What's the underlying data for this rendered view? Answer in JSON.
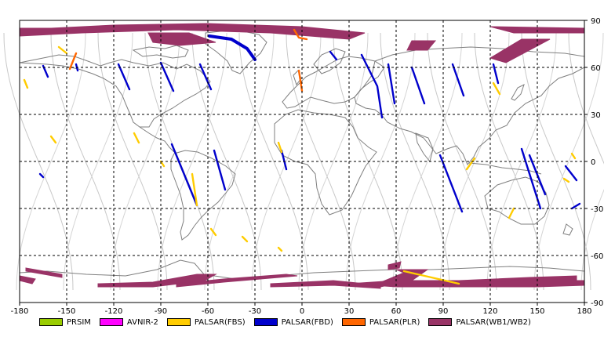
{
  "chart_data": {
    "type": "map",
    "title": "",
    "x_ticks": [
      "-180",
      "-150",
      "-120",
      "-90",
      "-60",
      "-30",
      "0",
      "30",
      "60",
      "90",
      "120",
      "150",
      "180"
    ],
    "y_ticks": [
      "90",
      "60",
      "30",
      "0",
      "-30",
      "-60",
      "-90"
    ],
    "xlim": [
      -180,
      180
    ],
    "ylim": [
      -90,
      90
    ],
    "grid": true,
    "legend_position": "bottom",
    "legend": [
      {
        "label": "PRSIM",
        "color": "#99cc00"
      },
      {
        "label": "AVNIR-2",
        "color": "#ff00ff"
      },
      {
        "label": "PALSAR(FBS)",
        "color": "#ffcc00"
      },
      {
        "label": "PALSAR(FBD)",
        "color": "#0000cc"
      },
      {
        "label": "PALSAR(PLR)",
        "color": "#ff6600"
      },
      {
        "label": "PALSAR(WB1/WB2)",
        "color": "#993366"
      }
    ],
    "swaths": [
      {
        "sensor": "PALSAR(WB1/WB2)",
        "points": [
          [
            -180,
            84
          ],
          [
            -120,
            87
          ],
          [
            -60,
            88
          ],
          [
            0,
            86
          ],
          [
            40,
            82
          ],
          [
            30,
            78
          ],
          [
            -20,
            82
          ],
          [
            -80,
            84
          ],
          [
            -140,
            82
          ],
          [
            -180,
            80
          ]
        ],
        "closed": true
      },
      {
        "sensor": "PALSAR(WB1/WB2)",
        "points": [
          [
            -180,
            85
          ],
          [
            -160,
            85
          ],
          [
            -150,
            83
          ],
          [
            -180,
            83
          ]
        ],
        "closed": true
      },
      {
        "sensor": "PALSAR(WB1/WB2)",
        "points": [
          [
            -98,
            82
          ],
          [
            -72,
            82
          ],
          [
            -55,
            76
          ],
          [
            -78,
            74
          ],
          [
            -95,
            76
          ]
        ],
        "closed": true
      },
      {
        "sensor": "PALSAR(WB1/WB2)",
        "points": [
          [
            70,
            77
          ],
          [
            85,
            77
          ],
          [
            80,
            71
          ],
          [
            67,
            71
          ]
        ],
        "closed": true
      },
      {
        "sensor": "PALSAR(WB1/WB2)",
        "points": [
          [
            120,
            86
          ],
          [
            180,
            85
          ],
          [
            180,
            82
          ],
          [
            135,
            82
          ]
        ],
        "closed": true
      },
      {
        "sensor": "PALSAR(WB1/WB2)",
        "points": [
          [
            140,
            78
          ],
          [
            158,
            78
          ],
          [
            130,
            63
          ],
          [
            120,
            66
          ]
        ],
        "closed": true
      },
      {
        "sensor": "PALSAR(WB1/WB2)",
        "points": [
          [
            -176,
            -68
          ],
          [
            -153,
            -72
          ],
          [
            -153,
            -74
          ],
          [
            -176,
            -70
          ]
        ],
        "closed": true
      },
      {
        "sensor": "PALSAR(WB1/WB2)",
        "points": [
          [
            -180,
            -73
          ],
          [
            -170,
            -75
          ],
          [
            -172,
            -78
          ],
          [
            -180,
            -76
          ]
        ],
        "closed": true
      },
      {
        "sensor": "PALSAR(WB1/WB2)",
        "points": [
          [
            -55,
            -72
          ],
          [
            -67,
            -72
          ],
          [
            -95,
            -77
          ],
          [
            -130,
            -78
          ],
          [
            -130,
            -80
          ],
          [
            -95,
            -80
          ],
          [
            -62,
            -76
          ]
        ],
        "closed": true
      },
      {
        "sensor": "PALSAR(WB1/WB2)",
        "points": [
          [
            -3,
            -73
          ],
          [
            -50,
            -77
          ],
          [
            -80,
            -80
          ],
          [
            -80,
            -78
          ],
          [
            -50,
            -75
          ],
          [
            -10,
            -72
          ]
        ],
        "closed": true
      },
      {
        "sensor": "PALSAR(WB1/WB2)",
        "points": [
          [
            -20,
            -78
          ],
          [
            20,
            -76
          ],
          [
            50,
            -79
          ],
          [
            50,
            -81
          ],
          [
            20,
            -79
          ],
          [
            -20,
            -80
          ]
        ],
        "closed": true
      },
      {
        "sensor": "PALSAR(WB1/WB2)",
        "points": [
          [
            55,
            -66
          ],
          [
            63,
            -64
          ],
          [
            62,
            -68
          ],
          [
            55,
            -69
          ]
        ],
        "closed": true
      },
      {
        "sensor": "PALSAR(WB1/WB2)",
        "points": [
          [
            60,
            -69
          ],
          [
            80,
            -69
          ],
          [
            70,
            -76
          ],
          [
            50,
            -80
          ],
          [
            48,
            -78
          ],
          [
            65,
            -71
          ]
        ],
        "closed": true
      },
      {
        "sensor": "PALSAR(WB1/WB2)",
        "points": [
          [
            30,
            -78
          ],
          [
            60,
            -76
          ],
          [
            100,
            -76
          ],
          [
            145,
            -74
          ],
          [
            175,
            -73
          ],
          [
            175,
            -76
          ],
          [
            140,
            -78
          ],
          [
            100,
            -80
          ],
          [
            60,
            -80
          ]
        ],
        "closed": true
      },
      {
        "sensor": "PALSAR(WB1/WB2)",
        "points": [
          [
            80,
            -77
          ],
          [
            150,
            -76
          ],
          [
            180,
            -76
          ],
          [
            180,
            -79
          ],
          [
            150,
            -80
          ],
          [
            80,
            -80
          ]
        ],
        "closed": true
      },
      {
        "sensor": "PALSAR(FBD)",
        "points": [
          [
            -59,
            80
          ],
          [
            -45,
            78
          ],
          [
            -35,
            72
          ],
          [
            -30,
            65
          ]
        ],
        "closed": false
      },
      {
        "sensor": "PALSAR(FBD)",
        "points": [
          [
            -165,
            61
          ],
          [
            -162,
            54
          ]
        ],
        "closed": false
      },
      {
        "sensor": "PALSAR(FBD)",
        "points": [
          [
            -144,
            62
          ],
          [
            -143,
            58
          ]
        ],
        "closed": false
      },
      {
        "sensor": "PALSAR(FBD)",
        "points": [
          [
            -117,
            62
          ],
          [
            -110,
            46
          ]
        ],
        "closed": false
      },
      {
        "sensor": "PALSAR(FBD)",
        "points": [
          [
            -90,
            63
          ],
          [
            -82,
            45
          ]
        ],
        "closed": false
      },
      {
        "sensor": "PALSAR(FBD)",
        "points": [
          [
            -65,
            62
          ],
          [
            -58,
            46
          ]
        ],
        "closed": false
      },
      {
        "sensor": "PALSAR(FBD)",
        "points": [
          [
            18,
            70
          ],
          [
            22,
            65
          ]
        ],
        "closed": false
      },
      {
        "sensor": "PALSAR(FBD)",
        "points": [
          [
            38,
            68
          ],
          [
            48,
            48
          ],
          [
            51,
            28
          ]
        ],
        "closed": false
      },
      {
        "sensor": "PALSAR(FBD)",
        "points": [
          [
            55,
            62
          ],
          [
            59,
            37
          ]
        ],
        "closed": false
      },
      {
        "sensor": "PALSAR(FBD)",
        "points": [
          [
            70,
            60
          ],
          [
            78,
            37
          ]
        ],
        "closed": false
      },
      {
        "sensor": "PALSAR(FBD)",
        "points": [
          [
            96,
            62
          ],
          [
            103,
            42
          ]
        ],
        "closed": false
      },
      {
        "sensor": "PALSAR(FBD)",
        "points": [
          [
            122,
            62
          ],
          [
            125,
            50
          ]
        ],
        "closed": false
      },
      {
        "sensor": "PALSAR(FBD)",
        "points": [
          [
            -83,
            11
          ],
          [
            -67,
            -28
          ]
        ],
        "closed": false
      },
      {
        "sensor": "PALSAR(FBD)",
        "points": [
          [
            -56,
            7
          ],
          [
            -49,
            -18
          ]
        ],
        "closed": false
      },
      {
        "sensor": "PALSAR(FBD)",
        "points": [
          [
            88,
            4
          ],
          [
            102,
            -32
          ]
        ],
        "closed": false
      },
      {
        "sensor": "PALSAR(FBD)",
        "points": [
          [
            140,
            8
          ],
          [
            152,
            -30
          ]
        ],
        "closed": false
      },
      {
        "sensor": "PALSAR(FBD)",
        "points": [
          [
            -167,
            -8
          ],
          [
            -165,
            -10
          ]
        ],
        "closed": false
      },
      {
        "sensor": "PALSAR(FBD)",
        "points": [
          [
            -13,
            7
          ],
          [
            -10,
            -5
          ]
        ],
        "closed": false
      },
      {
        "sensor": "PALSAR(FBD)",
        "points": [
          [
            145,
            4
          ],
          [
            155,
            -21
          ]
        ],
        "closed": false
      },
      {
        "sensor": "PALSAR(FBD)",
        "points": [
          [
            168,
            -3
          ],
          [
            175,
            -12
          ]
        ],
        "closed": false
      },
      {
        "sensor": "PALSAR(FBD)",
        "points": [
          [
            177,
            -27
          ],
          [
            172,
            -30
          ]
        ],
        "closed": false
      },
      {
        "sensor": "PALSAR(PLR)",
        "points": [
          [
            -144,
            69
          ],
          [
            -148,
            59
          ]
        ],
        "closed": false
      },
      {
        "sensor": "PALSAR(PLR)",
        "points": [
          [
            -5,
            84
          ],
          [
            -2,
            79
          ],
          [
            3,
            78
          ]
        ],
        "closed": false
      },
      {
        "sensor": "PALSAR(PLR)",
        "points": [
          [
            -2,
            58
          ],
          [
            0,
            45
          ]
        ],
        "closed": false
      },
      {
        "sensor": "PALSAR(FBS)",
        "points": [
          [
            -155,
            73
          ],
          [
            -150,
            69
          ]
        ],
        "closed": false
      },
      {
        "sensor": "PALSAR(FBS)",
        "points": [
          [
            -177,
            52
          ],
          [
            -175,
            47
          ]
        ],
        "closed": false
      },
      {
        "sensor": "PALSAR(FBS)",
        "points": [
          [
            -160,
            16
          ],
          [
            -157,
            12
          ]
        ],
        "closed": false
      },
      {
        "sensor": "PALSAR(FBS)",
        "points": [
          [
            -107,
            18
          ],
          [
            -104,
            12
          ]
        ],
        "closed": false
      },
      {
        "sensor": "PALSAR(FBS)",
        "points": [
          [
            -90,
            0
          ],
          [
            -88,
            -3
          ]
        ],
        "closed": false
      },
      {
        "sensor": "PALSAR(FBS)",
        "points": [
          [
            -70,
            -8
          ],
          [
            -67,
            -28
          ]
        ],
        "closed": false
      },
      {
        "sensor": "PALSAR(FBS)",
        "points": [
          [
            -58,
            -43
          ],
          [
            -55,
            -47
          ]
        ],
        "closed": false
      },
      {
        "sensor": "PALSAR(FBS)",
        "points": [
          [
            -38,
            -48
          ],
          [
            -35,
            -51
          ]
        ],
        "closed": false
      },
      {
        "sensor": "PALSAR(FBS)",
        "points": [
          [
            -15,
            12
          ],
          [
            -13,
            6
          ]
        ],
        "closed": false
      },
      {
        "sensor": "PALSAR(FBS)",
        "points": [
          [
            -15,
            -55
          ],
          [
            -13,
            -57
          ]
        ],
        "closed": false
      },
      {
        "sensor": "PALSAR(FBS)",
        "points": [
          [
            65,
            -70
          ],
          [
            100,
            -78
          ]
        ],
        "closed": false
      },
      {
        "sensor": "PALSAR(FBS)",
        "points": [
          [
            110,
            2
          ],
          [
            105,
            -5
          ]
        ],
        "closed": false
      },
      {
        "sensor": "PALSAR(FBS)",
        "points": [
          [
            122,
            50
          ],
          [
            126,
            43
          ]
        ],
        "closed": false
      },
      {
        "sensor": "PALSAR(FBS)",
        "points": [
          [
            135,
            -30
          ],
          [
            132,
            -36
          ]
        ],
        "closed": false
      },
      {
        "sensor": "PALSAR(FBS)",
        "points": [
          [
            172,
            5
          ],
          [
            174,
            2
          ]
        ],
        "closed": false
      },
      {
        "sensor": "PALSAR(FBS)",
        "points": [
          [
            167,
            -11
          ],
          [
            170,
            -13
          ]
        ],
        "closed": false
      }
    ]
  }
}
